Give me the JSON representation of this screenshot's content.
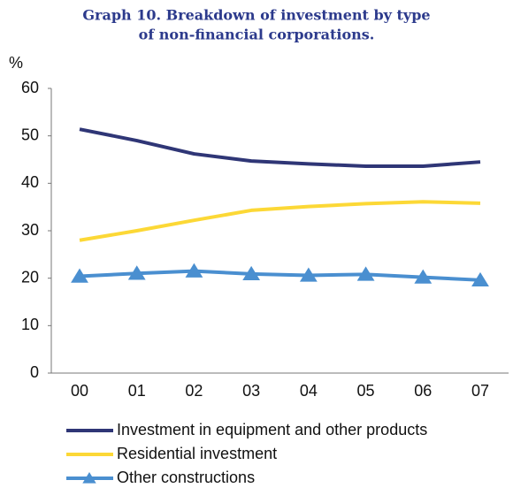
{
  "chart_data": {
    "type": "line",
    "title": [
      "Graph 10. Breakdown of investment by type",
      "of non-financial corporations."
    ],
    "y_label": "%",
    "categories": [
      "00",
      "01",
      "02",
      "03",
      "04",
      "05",
      "06",
      "07"
    ],
    "series": [
      {
        "name": "Investment in equipment and other products",
        "color": "#2f3676",
        "marker": "none",
        "values": [
          51.4,
          49.0,
          46.2,
          44.7,
          44.1,
          43.6,
          43.6,
          44.5
        ]
      },
      {
        "name": "Residential investment",
        "color": "#fcd836",
        "marker": "none",
        "values": [
          28.0,
          30.0,
          32.2,
          34.3,
          35.1,
          35.7,
          36.1,
          35.8
        ]
      },
      {
        "name": "Other constructions",
        "color": "#4a8fd0",
        "marker": "triangle",
        "values": [
          20.4,
          21.0,
          21.5,
          20.9,
          20.6,
          20.8,
          20.2,
          19.6
        ]
      }
    ],
    "ylim": [
      0,
      60
    ],
    "yticks": [
      0,
      10,
      20,
      30,
      40,
      50,
      60
    ],
    "grid": false,
    "legend": "bottom"
  }
}
